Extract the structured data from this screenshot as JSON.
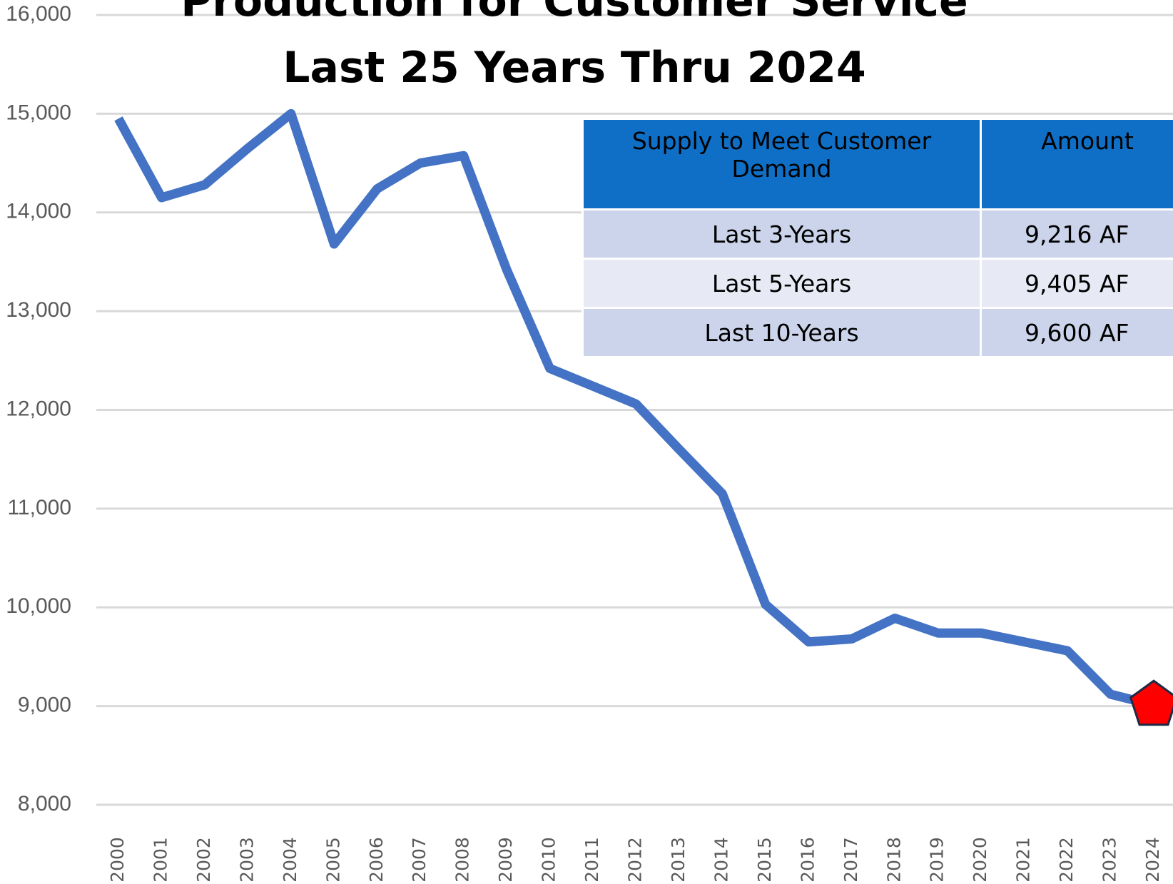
{
  "chart_data": {
    "type": "line",
    "title": "Production for Customer Service",
    "subtitle": "Last 25 Years Thru 2024",
    "categories": [
      "2000",
      "2001",
      "2002",
      "2003",
      "2004",
      "2005",
      "2006",
      "2007",
      "2008",
      "2009",
      "2010",
      "2011",
      "2012",
      "2013",
      "2014",
      "2015",
      "2016",
      "2017",
      "2018",
      "2019",
      "2020",
      "2021",
      "2022",
      "2023",
      "2024"
    ],
    "series": [
      {
        "color": "#4472c4",
        "values": [
          14950,
          14150,
          14280,
          14650,
          15000,
          13680,
          14240,
          14500,
          14575,
          13420,
          12420,
          12240,
          12060,
          11600,
          11150,
          10030,
          9650,
          9680,
          9890,
          9740,
          9740,
          9650,
          9560,
          9120,
          9010
        ]
      }
    ],
    "marker_color": "#ff0000",
    "ylim": [
      8000,
      16000
    ],
    "yticks": [
      {
        "value": 8000,
        "label": "8,000"
      },
      {
        "value": 9000,
        "label": "9,000"
      },
      {
        "value": 10000,
        "label": "10,000"
      },
      {
        "value": 11000,
        "label": "11,000"
      },
      {
        "value": 12000,
        "label": "12,000"
      },
      {
        "value": 13000,
        "label": "13,000"
      },
      {
        "value": 14000,
        "label": "14,000"
      },
      {
        "value": 15000,
        "label": "15,000"
      },
      {
        "value": 16000,
        "label": "16,000"
      }
    ],
    "grid": true
  },
  "table": {
    "header": [
      "Supply to Meet Customer Demand",
      "Amount"
    ],
    "rows": [
      [
        "Last 3-Years",
        "9,216 AF"
      ],
      [
        "Last 5-Years",
        "9,405 AF"
      ],
      [
        "Last 10-Years",
        "9,600 AF"
      ]
    ]
  }
}
